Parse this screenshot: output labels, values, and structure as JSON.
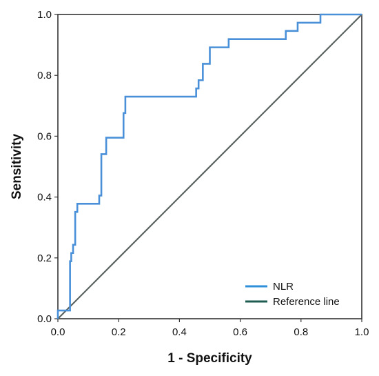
{
  "chart_data": {
    "type": "line",
    "title": "",
    "xlabel": "1 - Specificity",
    "ylabel": "Sensitivity",
    "xlim": [
      0,
      1
    ],
    "ylim": [
      0,
      1
    ],
    "xticks": [
      "0.0",
      "0.2",
      "0.4",
      "0.6",
      "0.8",
      "1.0"
    ],
    "yticks": [
      "0.0",
      "0.2",
      "0.4",
      "0.6",
      "0.8",
      "1.0"
    ],
    "grid": false,
    "legend_position": "bottom-right",
    "series": [
      {
        "name": "NLR",
        "color": "#4a90d9",
        "x": [
          0,
          0,
          0.04,
          0.04,
          0.04,
          0.044,
          0.044,
          0.05,
          0.05,
          0.057,
          0.057,
          0.064,
          0.064,
          0.07,
          0.07,
          0.136,
          0.136,
          0.143,
          0.143,
          0.159,
          0.159,
          0.216,
          0.216,
          0.222,
          0.222,
          0.455,
          0.455,
          0.463,
          0.463,
          0.477,
          0.477,
          0.484,
          0.484,
          0.5,
          0.5,
          0.562,
          0.562,
          0.75,
          0.75,
          0.789,
          0.789,
          0.864,
          0.864,
          1.0
        ],
        "y": [
          0,
          0.027,
          0.027,
          0.054,
          0.189,
          0.189,
          0.216,
          0.216,
          0.243,
          0.243,
          0.351,
          0.351,
          0.378,
          0.378,
          0.378,
          0.378,
          0.405,
          0.405,
          0.541,
          0.541,
          0.595,
          0.595,
          0.676,
          0.676,
          0.73,
          0.73,
          0.757,
          0.757,
          0.784,
          0.784,
          0.838,
          0.838,
          0.838,
          0.838,
          0.892,
          0.892,
          0.919,
          0.919,
          0.946,
          0.946,
          0.973,
          0.973,
          1.0,
          1.0
        ]
      },
      {
        "name": "Reference line",
        "color": "#5a6360",
        "x": [
          0,
          1
        ],
        "y": [
          0,
          1
        ]
      }
    ]
  },
  "legend": {
    "items": [
      {
        "label": "NLR",
        "color": "#2f8fd8"
      },
      {
        "label": "Reference line",
        "color": "#1f5c52"
      }
    ]
  }
}
